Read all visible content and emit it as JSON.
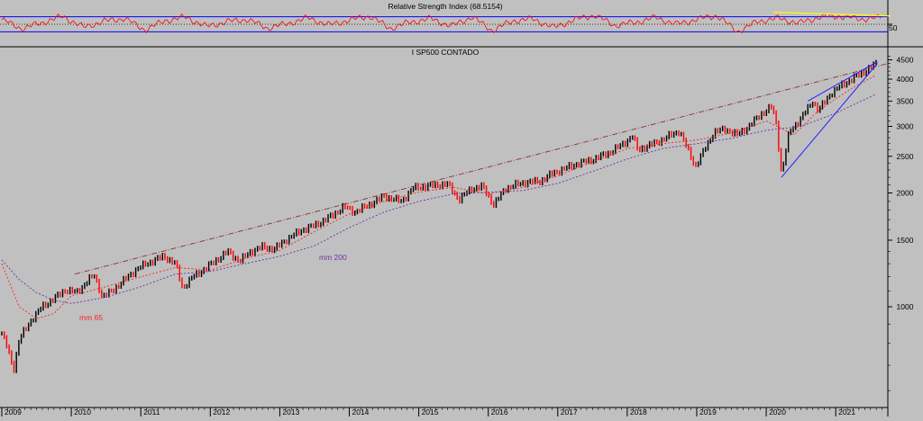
{
  "rsi_panel": {
    "title": "Relative Strength Index (68.5154)",
    "tick_labels": [
      "50"
    ]
  },
  "price_panel": {
    "title": "I SP500 CONTADO",
    "y_tick_labels": [
      "4500",
      "4000",
      "3500",
      "3000",
      "2500",
      "2000",
      "1500",
      "1000"
    ],
    "annotations": [
      "mm 200",
      "mm 65"
    ]
  },
  "x_tick_labels": [
    "2009",
    "2010",
    "2011",
    "2012",
    "2013",
    "2014",
    "2015",
    "2016",
    "2017",
    "2018",
    "2019",
    "2020",
    "2021"
  ],
  "colors": {
    "background": "#c0c0c0",
    "price_up": "#000000",
    "price_down": "#ff0000",
    "rsi_line": "#ff0000",
    "rsi_bands": "#0000ff",
    "rsi_trendline": "#ffff00",
    "channel_line": "#8b3030",
    "ma65": "#ff2020",
    "ma200": "#7030a0",
    "wedge": "#2020ff"
  },
  "chart_data": [
    {
      "type": "line",
      "title": "Relative Strength Index (68.5154)",
      "current_value": 68.5154,
      "y_ticks": [
        50
      ],
      "bands": [
        30,
        70
      ],
      "series": [
        {
          "values": [
            62,
            38,
            55,
            71,
            42,
            58,
            66,
            35,
            60,
            69,
            44,
            57,
            63,
            40,
            52,
            67,
            48,
            61,
            72,
            39,
            56,
            65,
            45,
            70,
            33,
            59,
            64,
            41,
            62,
            74,
            47,
            55,
            68,
            50,
            63,
            73,
            30,
            58,
            66,
            53,
            69,
            71,
            64,
            68
          ]
        }
      ]
    },
    {
      "type": "line",
      "title": "I SP500 CONTADO",
      "y_scale": "log",
      "y_ticks": [
        4500,
        4000,
        3500,
        3000,
        2500,
        2000,
        1500,
        1000
      ],
      "ylim": [
        640,
        4600
      ],
      "x_ticks": [
        "2009",
        "2010",
        "2011",
        "2012",
        "2013",
        "2014",
        "2015",
        "2016",
        "2017",
        "2018",
        "2019",
        "2020",
        "2021"
      ],
      "series": [
        {
          "values": [
            [
              2009.0,
              850
            ],
            [
              2009.08,
              780
            ],
            [
              2009.17,
              680
            ],
            [
              2009.25,
              820
            ],
            [
              2009.42,
              920
            ],
            [
              2009.58,
              1000
            ],
            [
              2009.75,
              1050
            ],
            [
              2009.92,
              1110
            ],
            [
              2010.08,
              1090
            ],
            [
              2010.25,
              1180
            ],
            [
              2010.33,
              1210
            ],
            [
              2010.45,
              1060
            ],
            [
              2010.58,
              1100
            ],
            [
              2010.75,
              1170
            ],
            [
              2010.92,
              1250
            ],
            [
              2011.08,
              1300
            ],
            [
              2011.33,
              1360
            ],
            [
              2011.5,
              1300
            ],
            [
              2011.6,
              1120
            ],
            [
              2011.75,
              1200
            ],
            [
              2011.92,
              1260
            ],
            [
              2012.25,
              1400
            ],
            [
              2012.42,
              1320
            ],
            [
              2012.58,
              1400
            ],
            [
              2012.75,
              1440
            ],
            [
              2012.92,
              1420
            ],
            [
              2013.08,
              1500
            ],
            [
              2013.33,
              1600
            ],
            [
              2013.5,
              1640
            ],
            [
              2013.75,
              1740
            ],
            [
              2013.92,
              1840
            ],
            [
              2014.08,
              1780
            ],
            [
              2014.33,
              1880
            ],
            [
              2014.5,
              1960
            ],
            [
              2014.75,
              1900
            ],
            [
              2014.92,
              2060
            ],
            [
              2015.25,
              2100
            ],
            [
              2015.42,
              2110
            ],
            [
              2015.58,
              1920
            ],
            [
              2015.75,
              2050
            ],
            [
              2015.92,
              2080
            ],
            [
              2016.08,
              1860
            ],
            [
              2016.25,
              2060
            ],
            [
              2016.5,
              2130
            ],
            [
              2016.75,
              2150
            ],
            [
              2016.92,
              2250
            ],
            [
              2017.25,
              2380
            ],
            [
              2017.5,
              2450
            ],
            [
              2017.75,
              2560
            ],
            [
              2017.92,
              2680
            ],
            [
              2018.08,
              2830
            ],
            [
              2018.15,
              2600
            ],
            [
              2018.42,
              2720
            ],
            [
              2018.75,
              2920
            ],
            [
              2018.98,
              2350
            ],
            [
              2019.25,
              2900
            ],
            [
              2019.42,
              2950
            ],
            [
              2019.58,
              2850
            ],
            [
              2019.75,
              3000
            ],
            [
              2019.92,
              3230
            ],
            [
              2020.08,
              3380
            ],
            [
              2020.14,
              3100
            ],
            [
              2020.22,
              2240
            ],
            [
              2020.33,
              2900
            ],
            [
              2020.5,
              3150
            ],
            [
              2020.67,
              3500
            ],
            [
              2020.75,
              3300
            ],
            [
              2020.92,
              3650
            ],
            [
              2021.08,
              3850
            ],
            [
              2021.25,
              4020
            ],
            [
              2021.42,
              4200
            ],
            [
              2021.58,
              4400
            ]
          ]
        },
        {
          "name": "mm 65",
          "values": [
            [
              2009.0,
              1300
            ],
            [
              2009.25,
              1000
            ],
            [
              2009.5,
              930
            ],
            [
              2009.75,
              960
            ],
            [
              2010.0,
              1070
            ],
            [
              2010.5,
              1130
            ],
            [
              2011.0,
              1200
            ],
            [
              2011.5,
              1270
            ],
            [
              2012.0,
              1250
            ],
            [
              2012.5,
              1340
            ],
            [
              2013.0,
              1410
            ],
            [
              2013.5,
              1580
            ],
            [
              2014.0,
              1760
            ],
            [
              2014.5,
              1900
            ],
            [
              2015.0,
              2010
            ],
            [
              2015.5,
              2070
            ],
            [
              2016.0,
              1990
            ],
            [
              2016.5,
              2070
            ],
            [
              2017.0,
              2220
            ],
            [
              2017.5,
              2420
            ],
            [
              2018.0,
              2620
            ],
            [
              2018.5,
              2700
            ],
            [
              2019.0,
              2760
            ],
            [
              2019.5,
              2880
            ],
            [
              2020.0,
              3100
            ],
            [
              2020.4,
              2850
            ],
            [
              2020.75,
              3300
            ],
            [
              2021.0,
              3550
            ],
            [
              2021.25,
              3800
            ],
            [
              2021.58,
              4100
            ]
          ]
        },
        {
          "name": "mm 200",
          "values": [
            [
              2009.0,
              1330
            ],
            [
              2009.25,
              1180
            ],
            [
              2009.5,
              1090
            ],
            [
              2009.75,
              1040
            ],
            [
              2010.0,
              1020
            ],
            [
              2010.5,
              1060
            ],
            [
              2011.0,
              1130
            ],
            [
              2011.5,
              1220
            ],
            [
              2012.0,
              1240
            ],
            [
              2012.5,
              1300
            ],
            [
              2013.0,
              1360
            ],
            [
              2013.5,
              1450
            ],
            [
              2014.0,
              1620
            ],
            [
              2014.5,
              1780
            ],
            [
              2015.0,
              1900
            ],
            [
              2015.5,
              1990
            ],
            [
              2016.0,
              2010
            ],
            [
              2016.5,
              2030
            ],
            [
              2017.0,
              2120
            ],
            [
              2017.5,
              2280
            ],
            [
              2018.0,
              2460
            ],
            [
              2018.5,
              2620
            ],
            [
              2019.0,
              2700
            ],
            [
              2019.5,
              2790
            ],
            [
              2020.0,
              2930
            ],
            [
              2020.5,
              3000
            ],
            [
              2021.0,
              3250
            ],
            [
              2021.25,
              3420
            ],
            [
              2021.58,
              3650
            ]
          ]
        }
      ]
    }
  ]
}
